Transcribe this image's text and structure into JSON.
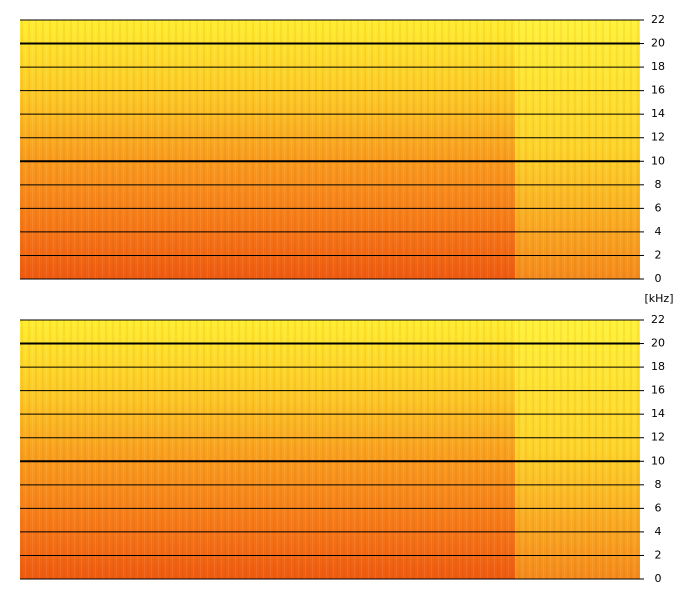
{
  "chart_data": [
    {
      "type": "spectrogram",
      "ylabel": "[kHz]",
      "ylim": [
        0,
        22
      ],
      "yticks": [
        0,
        2,
        4,
        6,
        8,
        10,
        12,
        14,
        16,
        18,
        20,
        22
      ],
      "grid": true,
      "major_grid": [
        10,
        20
      ]
    },
    {
      "type": "spectrogram",
      "ylim": [
        0,
        22
      ],
      "yticks": [
        0,
        2,
        4,
        6,
        8,
        10,
        12,
        14,
        16,
        18,
        20,
        22
      ],
      "grid": true,
      "major_grid": [
        10,
        20
      ]
    }
  ]
}
